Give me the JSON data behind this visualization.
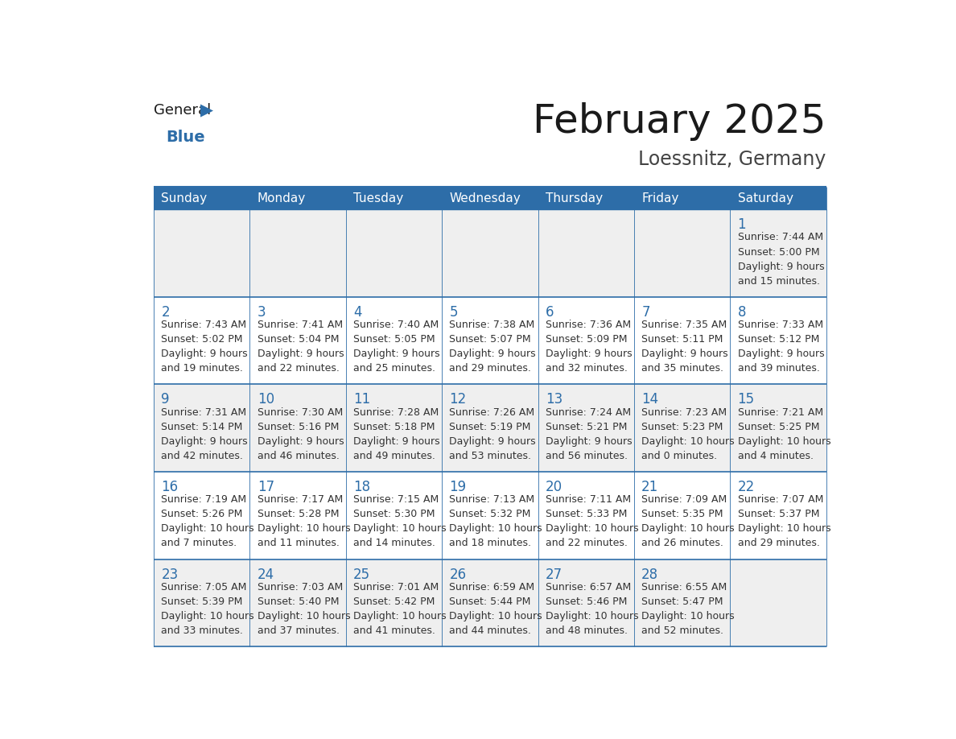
{
  "title": "February 2025",
  "subtitle": "Loessnitz, Germany",
  "days_of_week": [
    "Sunday",
    "Monday",
    "Tuesday",
    "Wednesday",
    "Thursday",
    "Friday",
    "Saturday"
  ],
  "header_bg": "#2D6DA8",
  "header_text": "#FFFFFF",
  "cell_bg_odd": "#EFEFEF",
  "cell_bg_even": "#FFFFFF",
  "border_color": "#2D6DA8",
  "title_color": "#1a1a1a",
  "subtitle_color": "#444444",
  "day_number_color": "#2D6DA8",
  "cell_text_color": "#333333",
  "logo_general_color": "#1a1a1a",
  "logo_blue_color": "#2D6DA8",
  "calendar": [
    [
      null,
      null,
      null,
      null,
      null,
      null,
      {
        "day": 1,
        "sunrise": "7:44 AM",
        "sunset": "5:00 PM",
        "daylight_line1": "Daylight: 9 hours",
        "daylight_line2": "and 15 minutes."
      }
    ],
    [
      {
        "day": 2,
        "sunrise": "7:43 AM",
        "sunset": "5:02 PM",
        "daylight_line1": "Daylight: 9 hours",
        "daylight_line2": "and 19 minutes."
      },
      {
        "day": 3,
        "sunrise": "7:41 AM",
        "sunset": "5:04 PM",
        "daylight_line1": "Daylight: 9 hours",
        "daylight_line2": "and 22 minutes."
      },
      {
        "day": 4,
        "sunrise": "7:40 AM",
        "sunset": "5:05 PM",
        "daylight_line1": "Daylight: 9 hours",
        "daylight_line2": "and 25 minutes."
      },
      {
        "day": 5,
        "sunrise": "7:38 AM",
        "sunset": "5:07 PM",
        "daylight_line1": "Daylight: 9 hours",
        "daylight_line2": "and 29 minutes."
      },
      {
        "day": 6,
        "sunrise": "7:36 AM",
        "sunset": "5:09 PM",
        "daylight_line1": "Daylight: 9 hours",
        "daylight_line2": "and 32 minutes."
      },
      {
        "day": 7,
        "sunrise": "7:35 AM",
        "sunset": "5:11 PM",
        "daylight_line1": "Daylight: 9 hours",
        "daylight_line2": "and 35 minutes."
      },
      {
        "day": 8,
        "sunrise": "7:33 AM",
        "sunset": "5:12 PM",
        "daylight_line1": "Daylight: 9 hours",
        "daylight_line2": "and 39 minutes."
      }
    ],
    [
      {
        "day": 9,
        "sunrise": "7:31 AM",
        "sunset": "5:14 PM",
        "daylight_line1": "Daylight: 9 hours",
        "daylight_line2": "and 42 minutes."
      },
      {
        "day": 10,
        "sunrise": "7:30 AM",
        "sunset": "5:16 PM",
        "daylight_line1": "Daylight: 9 hours",
        "daylight_line2": "and 46 minutes."
      },
      {
        "day": 11,
        "sunrise": "7:28 AM",
        "sunset": "5:18 PM",
        "daylight_line1": "Daylight: 9 hours",
        "daylight_line2": "and 49 minutes."
      },
      {
        "day": 12,
        "sunrise": "7:26 AM",
        "sunset": "5:19 PM",
        "daylight_line1": "Daylight: 9 hours",
        "daylight_line2": "and 53 minutes."
      },
      {
        "day": 13,
        "sunrise": "7:24 AM",
        "sunset": "5:21 PM",
        "daylight_line1": "Daylight: 9 hours",
        "daylight_line2": "and 56 minutes."
      },
      {
        "day": 14,
        "sunrise": "7:23 AM",
        "sunset": "5:23 PM",
        "daylight_line1": "Daylight: 10 hours",
        "daylight_line2": "and 0 minutes."
      },
      {
        "day": 15,
        "sunrise": "7:21 AM",
        "sunset": "5:25 PM",
        "daylight_line1": "Daylight: 10 hours",
        "daylight_line2": "and 4 minutes."
      }
    ],
    [
      {
        "day": 16,
        "sunrise": "7:19 AM",
        "sunset": "5:26 PM",
        "daylight_line1": "Daylight: 10 hours",
        "daylight_line2": "and 7 minutes."
      },
      {
        "day": 17,
        "sunrise": "7:17 AM",
        "sunset": "5:28 PM",
        "daylight_line1": "Daylight: 10 hours",
        "daylight_line2": "and 11 minutes."
      },
      {
        "day": 18,
        "sunrise": "7:15 AM",
        "sunset": "5:30 PM",
        "daylight_line1": "Daylight: 10 hours",
        "daylight_line2": "and 14 minutes."
      },
      {
        "day": 19,
        "sunrise": "7:13 AM",
        "sunset": "5:32 PM",
        "daylight_line1": "Daylight: 10 hours",
        "daylight_line2": "and 18 minutes."
      },
      {
        "day": 20,
        "sunrise": "7:11 AM",
        "sunset": "5:33 PM",
        "daylight_line1": "Daylight: 10 hours",
        "daylight_line2": "and 22 minutes."
      },
      {
        "day": 21,
        "sunrise": "7:09 AM",
        "sunset": "5:35 PM",
        "daylight_line1": "Daylight: 10 hours",
        "daylight_line2": "and 26 minutes."
      },
      {
        "day": 22,
        "sunrise": "7:07 AM",
        "sunset": "5:37 PM",
        "daylight_line1": "Daylight: 10 hours",
        "daylight_line2": "and 29 minutes."
      }
    ],
    [
      {
        "day": 23,
        "sunrise": "7:05 AM",
        "sunset": "5:39 PM",
        "daylight_line1": "Daylight: 10 hours",
        "daylight_line2": "and 33 minutes."
      },
      {
        "day": 24,
        "sunrise": "7:03 AM",
        "sunset": "5:40 PM",
        "daylight_line1": "Daylight: 10 hours",
        "daylight_line2": "and 37 minutes."
      },
      {
        "day": 25,
        "sunrise": "7:01 AM",
        "sunset": "5:42 PM",
        "daylight_line1": "Daylight: 10 hours",
        "daylight_line2": "and 41 minutes."
      },
      {
        "day": 26,
        "sunrise": "6:59 AM",
        "sunset": "5:44 PM",
        "daylight_line1": "Daylight: 10 hours",
        "daylight_line2": "and 44 minutes."
      },
      {
        "day": 27,
        "sunrise": "6:57 AM",
        "sunset": "5:46 PM",
        "daylight_line1": "Daylight: 10 hours",
        "daylight_line2": "and 48 minutes."
      },
      {
        "day": 28,
        "sunrise": "6:55 AM",
        "sunset": "5:47 PM",
        "daylight_line1": "Daylight: 10 hours",
        "daylight_line2": "and 52 minutes."
      },
      null
    ]
  ],
  "fig_width": 11.88,
  "fig_height": 9.18,
  "dpi": 100
}
